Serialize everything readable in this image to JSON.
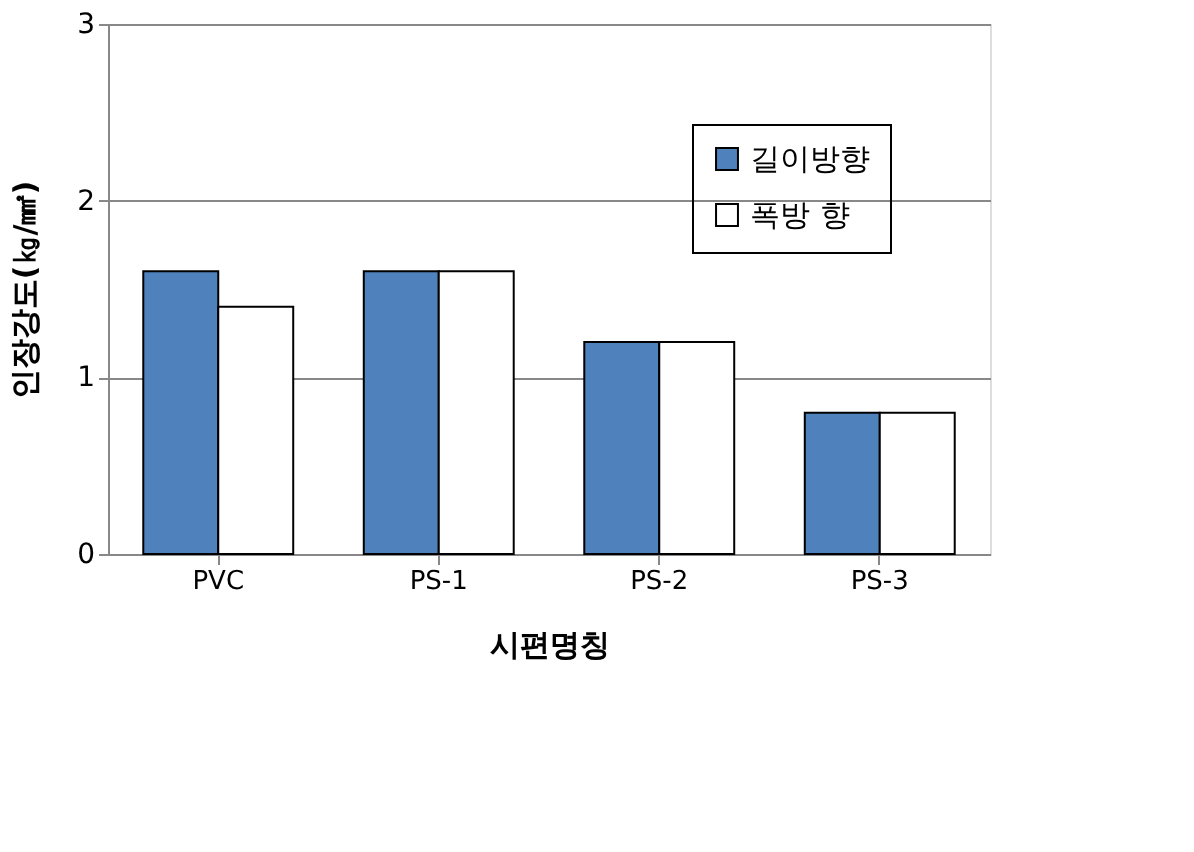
{
  "chart_data": {
    "type": "bar",
    "xlabel": "시편명칭",
    "ylabel": "인장강도(㎏/㎟)",
    "categories": [
      "PVC",
      "PS-1",
      "PS-2",
      "PS-3"
    ],
    "series": [
      {
        "name": "길이방향",
        "color": "#4f81bd",
        "values": [
          1.6,
          1.6,
          1.2,
          0.8
        ]
      },
      {
        "name": "폭방 향",
        "color": "#ffffff",
        "values": [
          1.4,
          1.6,
          1.2,
          0.8
        ]
      }
    ],
    "ylim": [
      0,
      3
    ],
    "yticks": [
      0,
      1,
      2,
      3
    ],
    "grid": "y",
    "legend": "top right"
  }
}
